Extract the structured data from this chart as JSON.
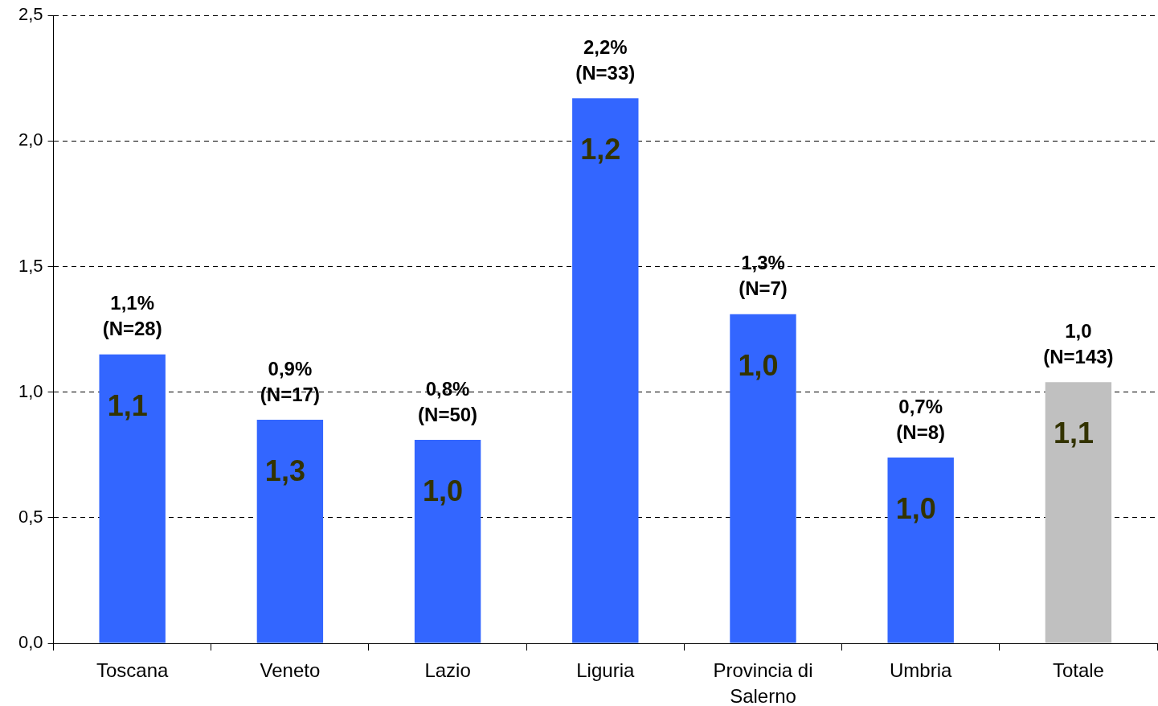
{
  "chart_data": {
    "type": "bar",
    "categories": [
      "Toscana",
      "Veneto",
      "Lazio",
      "Liguria",
      "Provincia di Salerno",
      "Umbria",
      "Totale"
    ],
    "values": [
      1.15,
      0.89,
      0.81,
      2.17,
      1.31,
      0.74,
      1.04
    ],
    "colors": [
      "#3366ff",
      "#3366ff",
      "#3366ff",
      "#3366ff",
      "#3366ff",
      "#3366ff",
      "#c0c0c0"
    ],
    "value_labels": [
      "1,1%\n(N=28)",
      "0,9%\n(N=17)",
      "0,8%\n(N=50)",
      "2,2%\n(N=33)",
      "1,3%\n(N=7)",
      "0,7%\n(N=8)",
      "1,0\n(N=143)"
    ],
    "ylim": [
      0,
      2.5
    ],
    "yticks": [
      {
        "value": 0,
        "label": "0,0"
      },
      {
        "value": 0.5,
        "label": "0,5"
      },
      {
        "value": 1,
        "label": "1,0"
      },
      {
        "value": 1.5,
        "label": "1,5"
      },
      {
        "value": 2,
        "label": "2,0"
      },
      {
        "value": 2.5,
        "label": "2,5"
      }
    ],
    "grid": "y",
    "annotations": [
      "1,1",
      "1,3",
      "1,0",
      "1,2",
      "1,0",
      "1,0",
      "1,1"
    ]
  }
}
